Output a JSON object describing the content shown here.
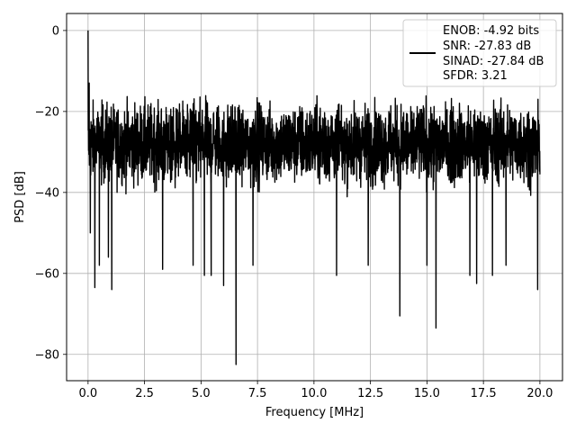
{
  "chart_data": {
    "type": "line",
    "xlabel": "Frequency [MHz]",
    "ylabel": "PSD [dB]",
    "xlim": [
      -0.95,
      21.0
    ],
    "ylim": [
      -86.5,
      4.2
    ],
    "x_ticks": [
      0.0,
      2.5,
      5.0,
      7.5,
      10.0,
      12.5,
      15.0,
      17.5,
      20.0
    ],
    "x_tick_labels": [
      "0.0",
      "2.5",
      "5.0",
      "7.5",
      "10.0",
      "12.5",
      "15.0",
      "17.5",
      "20.0"
    ],
    "y_ticks": [
      0,
      -20,
      -40,
      -60,
      -80
    ],
    "y_tick_labels": [
      "0",
      "−20",
      "−40",
      "−60",
      "−80"
    ],
    "grid": true,
    "legend_position": "top-right",
    "series": [
      {
        "color": "#000000",
        "x_range": [
          0,
          20
        ],
        "points": [
          [
            0.0,
            0.0
          ],
          [
            0.05,
            -13
          ],
          [
            0.1,
            -50
          ],
          [
            0.3,
            -63.5
          ],
          [
            0.5,
            -58
          ],
          [
            0.9,
            -56
          ],
          [
            1.05,
            -64
          ],
          [
            3.3,
            -59
          ],
          [
            4.65,
            -58
          ],
          [
            5.15,
            -60.5
          ],
          [
            5.45,
            -60.5
          ],
          [
            6.0,
            -63
          ],
          [
            6.55,
            -82.5
          ],
          [
            7.3,
            -58
          ],
          [
            11.0,
            -60.5
          ],
          [
            12.4,
            -58
          ],
          [
            13.8,
            -70.5
          ],
          [
            15.0,
            -58
          ],
          [
            15.4,
            -73.5
          ],
          [
            16.9,
            -60.5
          ],
          [
            17.2,
            -62.5
          ],
          [
            17.9,
            -60.5
          ],
          [
            18.5,
            -58
          ],
          [
            19.9,
            -64
          ]
        ],
        "envelope_upper_db": -16,
        "envelope_lower_db": -45,
        "noise_floor_center_db": -28
      }
    ],
    "legend_entries": [
      "ENOB: -4.92 bits",
      "SNR: -27.83 dB",
      "SINAD: -27.84 dB",
      "SFDR: 3.21"
    ]
  }
}
